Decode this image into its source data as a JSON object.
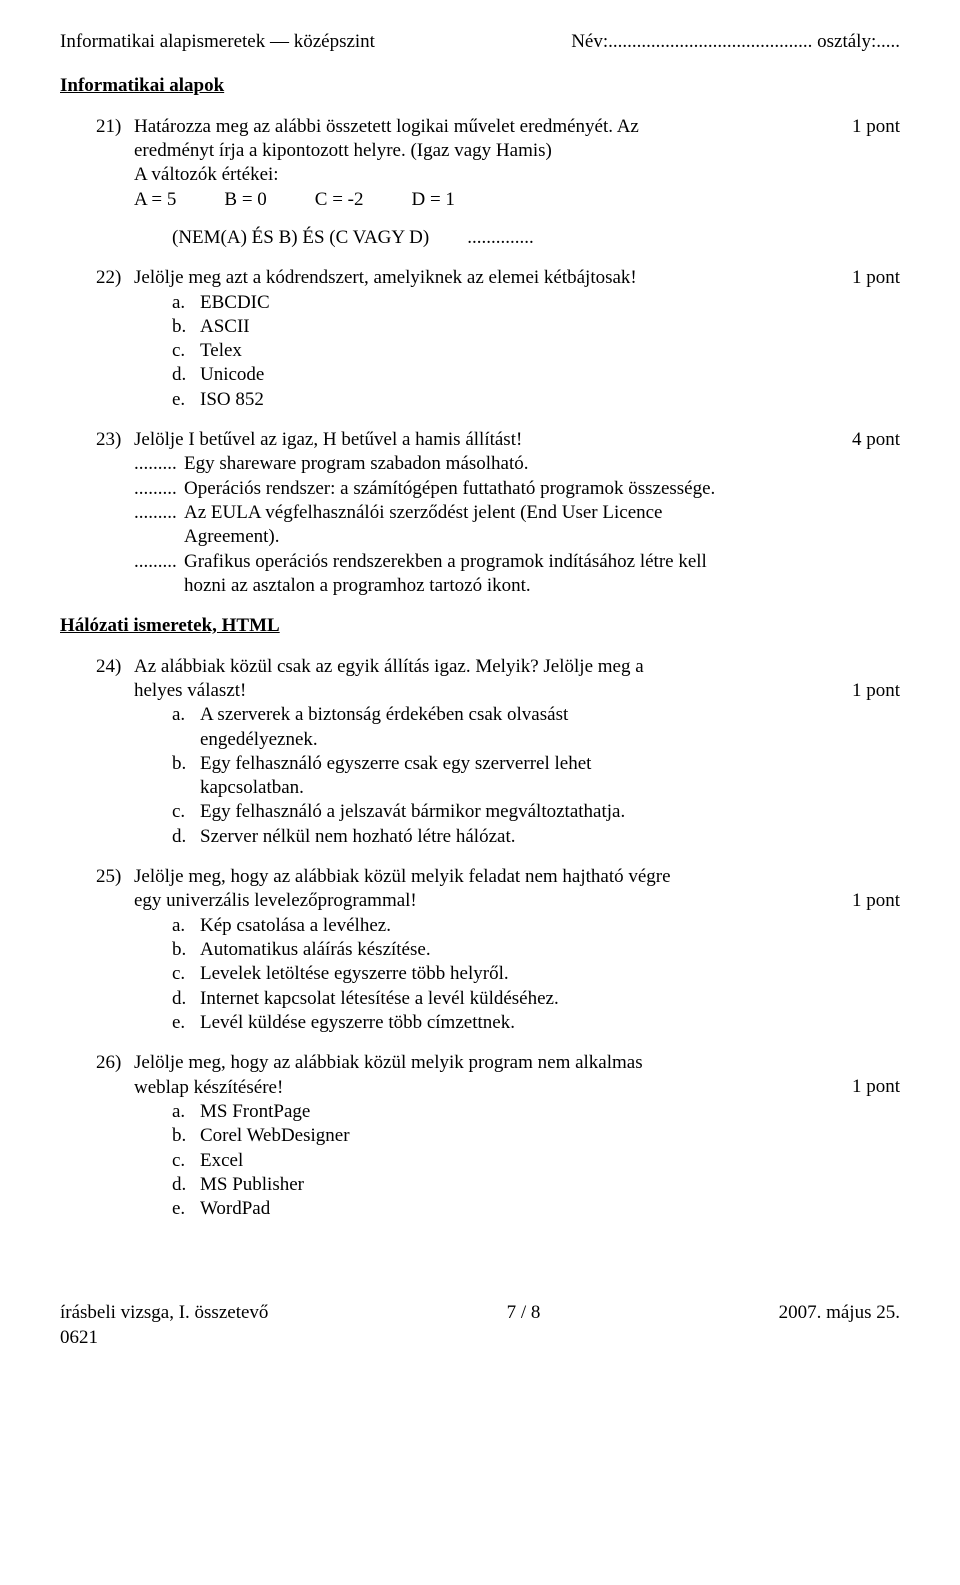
{
  "header": {
    "left": "Informatikai alapismeretek — középszint",
    "name_label": "Név:",
    "name_dots": "...........................................",
    "class_label": "osztály:",
    "class_dots": "....."
  },
  "section1_title": "Informatikai alapok",
  "q21": {
    "num": "21)",
    "line1": "Határozza meg az alábbi összetett logikai művelet eredményét. Az",
    "line2": "eredményt írja a kipontozott helyre. (Igaz vagy Hamis)",
    "line3": "A változók értékei:",
    "varA": "A = 5",
    "varB": "B = 0",
    "varC": "C = -2",
    "varD": "D = 1",
    "expr": "(NEM(A) ÉS B) ÉS (C VAGY D)",
    "expr_dots": "..............",
    "points": "1 pont"
  },
  "q22": {
    "num": "22)",
    "text": "Jelölje meg azt a kódrendszert, amelyiknek az elemei kétbájtosak!",
    "points": "1 pont",
    "opts": [
      {
        "l": "a.",
        "t": "EBCDIC"
      },
      {
        "l": "b.",
        "t": "ASCII"
      },
      {
        "l": "c.",
        "t": "Telex"
      },
      {
        "l": "d.",
        "t": "Unicode"
      },
      {
        "l": "e.",
        "t": "ISO 852"
      }
    ]
  },
  "q23": {
    "num": "23)",
    "text": "Jelölje I betűvel az igaz, H betűvel a hamis állítást!",
    "points": "4 pont",
    "dots": ".........",
    "s1": "Egy shareware program szabadon másolható.",
    "s2": "Operációs rendszer: a számítógépen futtatható programok összessége.",
    "s3a": "Az EULA végfelhasználói szerződést jelent (End User Licence",
    "s3b": "Agreement).",
    "s4a": "Grafikus operációs rendszerekben a programok indításához létre kell",
    "s4b": "hozni az asztalon a programhoz tartozó ikont."
  },
  "section2_title": "Hálózati ismeretek, HTML",
  "q24": {
    "num": "24)",
    "line1": "Az alábbiak közül csak az egyik állítás igaz. Melyik? Jelölje meg a",
    "line2": "helyes választ!",
    "points": "1 pont",
    "opts": [
      {
        "l": "a.",
        "t1": "A szerverek a biztonság érdekében csak olvasást",
        "t2": "engedélyeznek."
      },
      {
        "l": "b.",
        "t1": "Egy felhasználó egyszerre csak egy szerverrel lehet",
        "t2": "kapcsolatban."
      },
      {
        "l": "c.",
        "t1": "Egy felhasználó a jelszavát bármikor megváltoztathatja."
      },
      {
        "l": "d.",
        "t1": "Szerver nélkül nem hozható létre hálózat."
      }
    ]
  },
  "q25": {
    "num": "25)",
    "line1": "Jelölje meg, hogy az alábbiak közül melyik feladat nem hajtható végre",
    "line2": "egy univerzális levelezőprogrammal!",
    "points": "1 pont",
    "opts": [
      {
        "l": "a.",
        "t": "Kép csatolása a levélhez."
      },
      {
        "l": "b.",
        "t": "Automatikus aláírás készítése."
      },
      {
        "l": "c.",
        "t": "Levelek letöltése egyszerre több helyről."
      },
      {
        "l": "d.",
        "t": "Internet kapcsolat létesítése a levél küldéséhez."
      },
      {
        "l": "e.",
        "t": "Levél küldése egyszerre több címzettnek."
      }
    ]
  },
  "q26": {
    "num": "26)",
    "line1": "Jelölje meg, hogy az alábbiak közül melyik program nem alkalmas",
    "line2": "weblap készítésére!",
    "points": "1 pont",
    "opts": [
      {
        "l": "a.",
        "t": "MS FrontPage"
      },
      {
        "l": "b.",
        "t": "Corel WebDesigner"
      },
      {
        "l": "c.",
        "t": "Excel"
      },
      {
        "l": "d.",
        "t": "MS Publisher"
      },
      {
        "l": "e.",
        "t": "WordPad"
      }
    ]
  },
  "footer": {
    "left1": "írásbeli vizsga, I. összetevő",
    "left2": "0621",
    "center": "7 / 8",
    "right": "2007. május 25."
  }
}
